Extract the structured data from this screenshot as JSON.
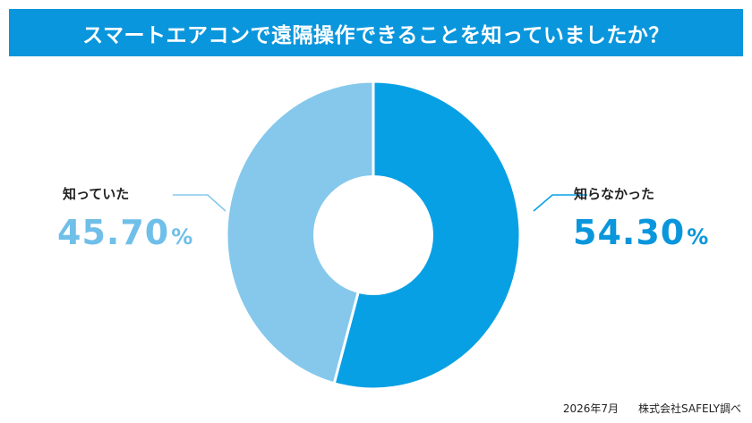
{
  "title": "スマートエアコンで遠隔操作できることを知っていましたか？",
  "footer": {
    "date": "2026年7月",
    "source": "株式会社SAFELY調べ"
  },
  "colors": {
    "title_bar": "#0a96dc",
    "knew_slice": "#85c8ec",
    "didnt_know_slice": "#08a0e4",
    "knew_value_text": "#6fbfe9",
    "didnt_know_value_text": "#0a96dc",
    "leader_left": "#85c8ec",
    "leader_right": "#08a0e4"
  },
  "chart_data": {
    "type": "pie",
    "donut": true,
    "title": "スマートエアコンで遠隔操作できることを知っていましたか？",
    "slices": [
      {
        "label": "知らなかった",
        "value": 54.3,
        "display": "54.30",
        "unit": "%"
      },
      {
        "label": "知っていた",
        "value": 45.7,
        "display": "45.70",
        "unit": "%"
      }
    ]
  }
}
